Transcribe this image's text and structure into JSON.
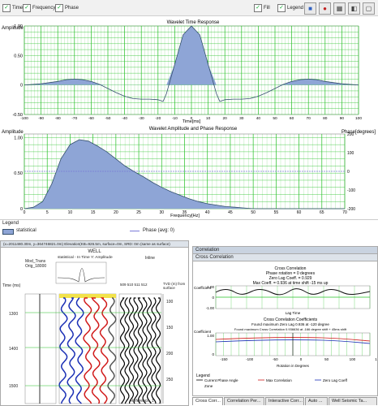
{
  "toolbar": {
    "left_checkboxes": [
      {
        "label": "Time",
        "checked": true
      },
      {
        "label": "Frequency",
        "checked": true
      },
      {
        "label": "Phase",
        "checked": true
      }
    ],
    "right_checkboxes": [
      {
        "label": "Fill",
        "checked": true
      },
      {
        "label": "Legend",
        "checked": true
      }
    ],
    "buttons": [
      {
        "icon": "color-fill-icon",
        "glyph": "■"
      },
      {
        "icon": "dots-icon",
        "glyph": "●"
      },
      {
        "icon": "grid-icon",
        "glyph": "▦"
      },
      {
        "icon": "export-icon",
        "glyph": "◧"
      },
      {
        "icon": "window-icon",
        "glyph": "▢"
      }
    ]
  },
  "time_panel": {
    "title": "Wavelet Time Response",
    "ylabel": "Amplitude",
    "xlabel": "Time[ms]",
    "yticks": [
      "1.00",
      "0.50",
      "0",
      "-0.50"
    ],
    "xticks": [
      "-100",
      "-90",
      "-80",
      "-70",
      "-60",
      "-50",
      "-40",
      "-30",
      "-20",
      "-10",
      "0",
      "10",
      "20",
      "30",
      "40",
      "50",
      "60",
      "70",
      "80",
      "90",
      "100"
    ]
  },
  "freq_panel": {
    "title": "Wavelet Amplitude and Phase Response",
    "ylabel_left": "Amplitude",
    "ylabel_right": "Phase[degrees]",
    "xlabel": "Frequency[Hz]",
    "yticks_left": [
      "1.00",
      "0.50",
      "0"
    ],
    "yticks_right": [
      "200",
      "100",
      "0",
      "-100",
      "-200"
    ],
    "xticks": [
      "0",
      "5",
      "10",
      "15",
      "20",
      "25",
      "30",
      "35",
      "40",
      "45",
      "50",
      "55",
      "60",
      "65",
      "70"
    ]
  },
  "legend": {
    "title": "Legend",
    "entry1": "statistical",
    "entry2": "Phase (avg: 0)"
  },
  "well_panel": {
    "header": "(x=2011480.30m, y=364746821.0m) Elevation(KB=926.5m, surface=0m, SRD: 0m (same as surface)",
    "title": "WELL",
    "track_label1": "Mod_Trans",
    "track_label2": "Orig_18000",
    "wavelet_label": "statistical - In Time Y: Amplitude",
    "inline_label": "Inline",
    "time_label": "Time (ms)",
    "md_label": "TVD (m) from surface",
    "depths": [
      "1300",
      "1400",
      "1500"
    ],
    "md_ticks": [
      "100",
      "150",
      "200",
      "250"
    ],
    "bottom_label": "Reference_1",
    "inline_numbers": "509 510 511 512"
  },
  "corr_panel": {
    "window_title": "Correlation",
    "header": "Cross Correlation",
    "ccf_title1": "Cross Correlation",
    "ccf_title2": "Phase rotation = 0 degrees",
    "ccf_title3": "Zero Lag Coeff. = 0.929",
    "ccf_title4": "Max Coeff. = 0.936 at time shift -15 ms up",
    "ccf_ylabel": "Coefficient",
    "ccf_xlabel": "Lag Time",
    "ccf_yticks": [
      "1.00",
      "0",
      "-1.00"
    ],
    "rot_title1": "Cross Correlation Coefficients",
    "rot_title2": "Found maximum Zero Lag 0.936 at -120 degree",
    "rot_title3": "Found maximum Cross Correlation 0.936636 at -166 degree shift + 45ms shift",
    "rot_ylabel": "Coefficient",
    "rot_xlabel": "Rotation in Degrees",
    "rot_yticks": [
      "1.00",
      "0"
    ],
    "rot_xticks": [
      "-150",
      "-100",
      "-50",
      "0",
      "50",
      "100",
      "150"
    ],
    "legend_title": "Legend",
    "legend_items": [
      "Current Phase Angle",
      "Max Correlation",
      "Zero Lag Coeff",
      "Zone"
    ]
  },
  "bottom_tabs": [
    "Cross Corr...",
    "Correlation Per...",
    "Interactive Corr...",
    "Auto ...",
    "Well Seismic Ta..."
  ],
  "colors": {
    "grid": "#26c026",
    "fill": "#8ea5d6",
    "line": "#35506e",
    "blue": "#1a2fb5",
    "red": "#d11a1a",
    "phase": "#7b7bd8"
  },
  "chart_data": [
    {
      "type": "line",
      "title": "Wavelet Time Response",
      "xlabel": "Time[ms]",
      "ylabel": "Amplitude",
      "x": [
        -100,
        -90,
        -80,
        -75,
        -70,
        -65,
        -60,
        -55,
        -50,
        -45,
        -40,
        -35,
        -30,
        -25,
        -20,
        -17,
        -15,
        -10,
        -5,
        0,
        5,
        10,
        15,
        17,
        20,
        25,
        30,
        35,
        40,
        45,
        50,
        55,
        60,
        65,
        70,
        75,
        80,
        90,
        100
      ],
      "y": [
        0,
        0.02,
        0.06,
        0.09,
        0.1,
        0.09,
        0.06,
        0.01,
        -0.06,
        -0.13,
        -0.19,
        -0.23,
        -0.24,
        -0.24,
        -0.25,
        -0.28,
        -0.15,
        0.35,
        0.85,
        1.0,
        0.85,
        0.35,
        -0.15,
        -0.28,
        -0.25,
        -0.24,
        -0.24,
        -0.23,
        -0.19,
        -0.13,
        -0.06,
        0.01,
        0.06,
        0.09,
        0.1,
        0.09,
        0.06,
        0.02,
        0
      ],
      "xlim": [
        -100,
        100
      ],
      "ylim": [
        -0.5,
        1.0
      ],
      "grid": true
    },
    {
      "type": "area",
      "title": "Wavelet Amplitude and Phase Response",
      "xlabel": "Frequency[Hz]",
      "ylabel": "Amplitude",
      "x": [
        0,
        2,
        4,
        6,
        8,
        10,
        12,
        14,
        16,
        18,
        20,
        22,
        24,
        26,
        28,
        30,
        32,
        34,
        36,
        38,
        40,
        42,
        44,
        46,
        48,
        50,
        55,
        60,
        65,
        70
      ],
      "y": [
        0,
        0.02,
        0.1,
        0.35,
        0.7,
        0.9,
        0.97,
        0.95,
        0.88,
        0.8,
        0.7,
        0.6,
        0.52,
        0.45,
        0.37,
        0.3,
        0.24,
        0.19,
        0.14,
        0.1,
        0.07,
        0.05,
        0.03,
        0.02,
        0.01,
        0,
        0,
        0,
        0,
        0
      ],
      "xlim": [
        0,
        70
      ],
      "ylim": [
        0,
        1.05
      ],
      "phase_series": {
        "name": "Phase (avg: 0)",
        "value": 0
      },
      "grid": true
    }
  ]
}
